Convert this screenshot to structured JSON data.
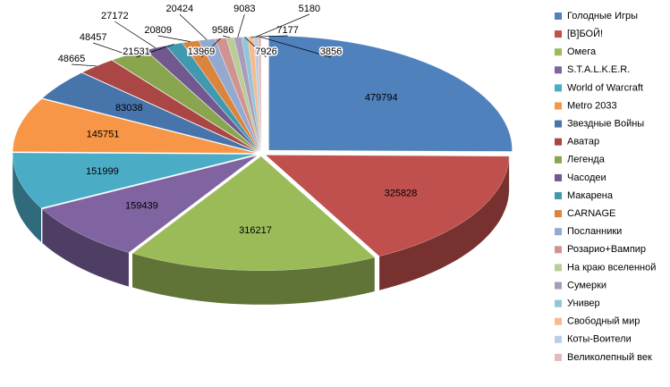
{
  "chart_data": {
    "type": "pie3d",
    "categories": [
      "Голодные Игры",
      "[В]БОЙ!",
      "Омега",
      "S.T.A.L.K.E.R.",
      "World of Warcraft",
      "Metro 2033",
      "Звездные Войны",
      "Аватар",
      "Легенда",
      "Часодеи",
      "Макарена",
      "CARNAGE",
      "Посланники",
      "Розарио+Вампир",
      "На краю вселенной",
      "Сумерки",
      "Универ",
      "Свободный мир",
      "Коты-Воители",
      "Великолепный век"
    ],
    "values": [
      479794,
      325828,
      316217,
      159439,
      151999,
      145751,
      83038,
      48665,
      48457,
      27172,
      21531,
      20809,
      20424,
      13969,
      9586,
      9083,
      7926,
      7177,
      5180,
      3856
    ],
    "colors": [
      "#4F81BD",
      "#C0504D",
      "#9BBB59",
      "#8064A2",
      "#4BACC6",
      "#F79646",
      "#4674AB",
      "#AA4643",
      "#89A54E",
      "#71588F",
      "#4198AF",
      "#DB843D",
      "#93A9CF",
      "#D19392",
      "#B9CD96",
      "#A99BBD",
      "#92C5D7",
      "#F9B98A",
      "#B9CDE5",
      "#E6B9B8"
    ],
    "legend": "right"
  }
}
